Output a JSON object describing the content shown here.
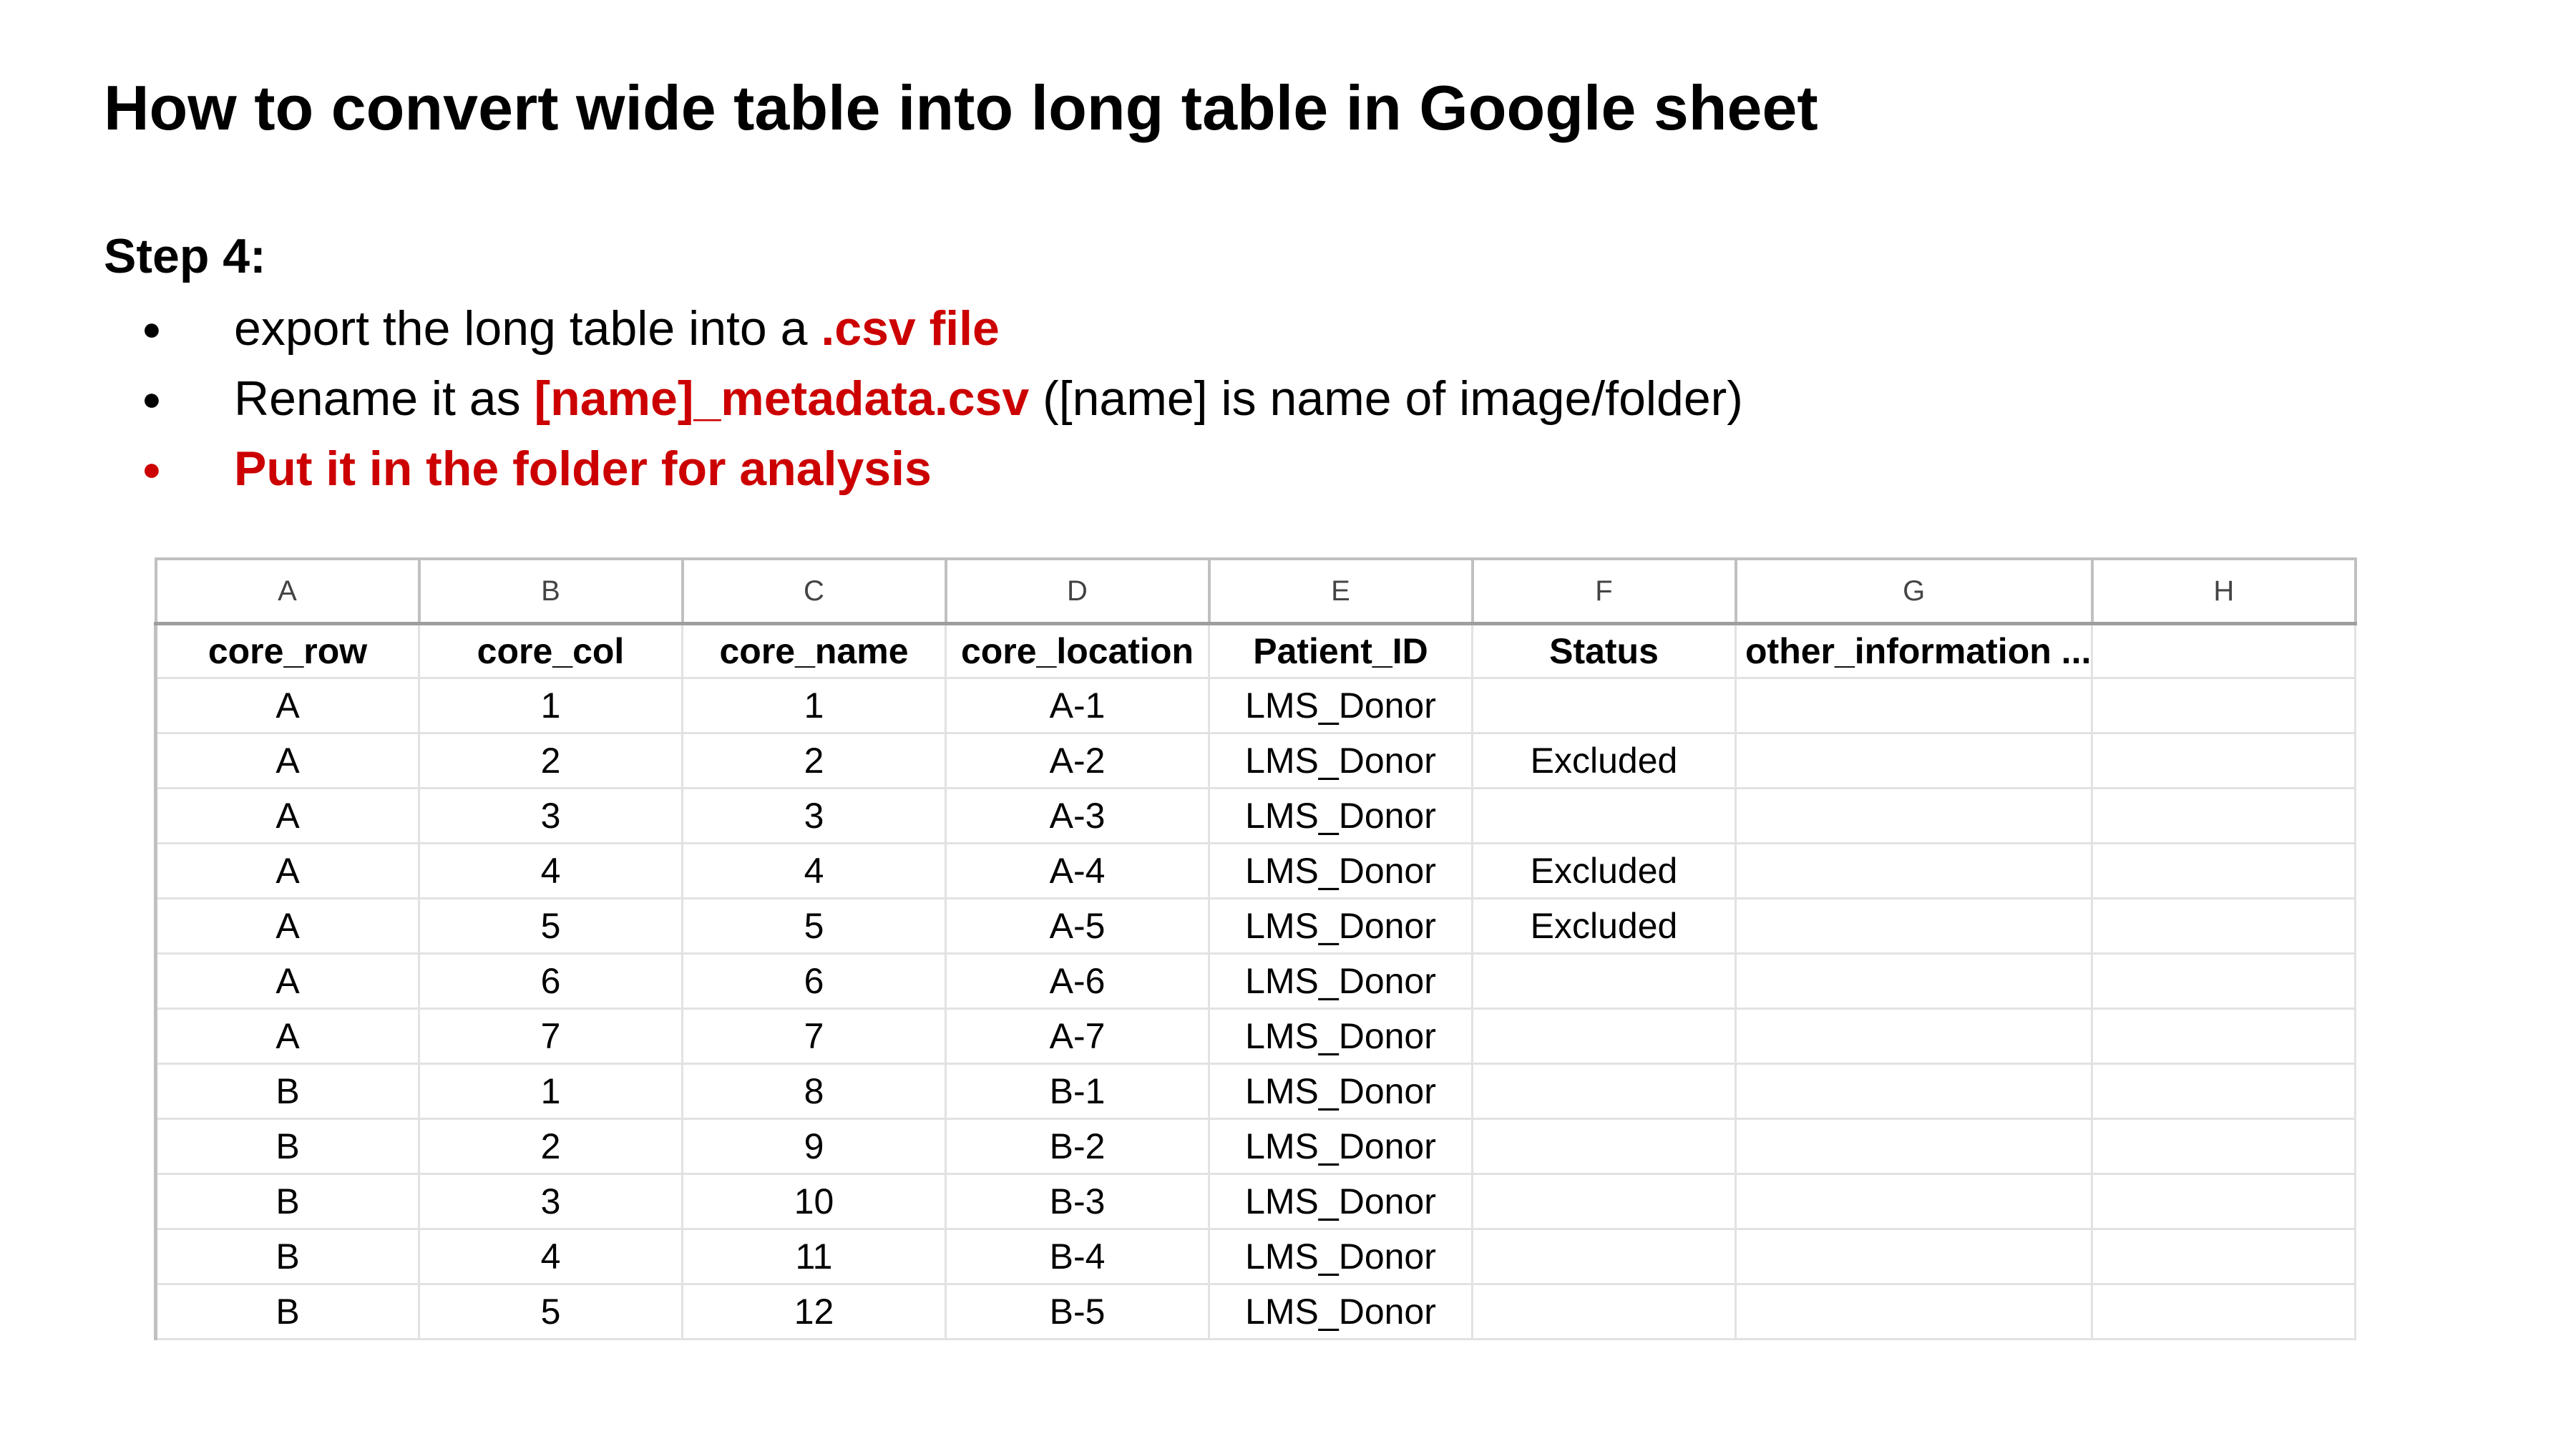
{
  "title": "How to convert wide table into long table in Google sheet",
  "step": "Step 4:",
  "bullets": [
    {
      "pre": "export the long table into a ",
      "highlight": ".csv file",
      "post": ""
    },
    {
      "pre": "Rename it as ",
      "highlight": "[name]_metadata.csv",
      "post": " ([name] is name of image/folder)"
    },
    {
      "text": "Put it in the folder for analysis"
    }
  ],
  "bullet_glyph": "●",
  "colors": {
    "accent": "#cc0000",
    "grid": "#e2e2e2",
    "header_border": "#c0c0c0"
  },
  "sheet": {
    "column_letters": [
      "A",
      "B",
      "C",
      "D",
      "E",
      "F",
      "G",
      "H"
    ],
    "headers": [
      "core_row",
      "core_col",
      "core_name",
      "core_location",
      "Patient_ID",
      "Status",
      "other_information ...",
      ""
    ],
    "rows": [
      [
        "A",
        "1",
        "1",
        "A-1",
        "LMS_Donor",
        "",
        "",
        ""
      ],
      [
        "A",
        "2",
        "2",
        "A-2",
        "LMS_Donor",
        "Excluded",
        "",
        ""
      ],
      [
        "A",
        "3",
        "3",
        "A-3",
        "LMS_Donor",
        "",
        "",
        ""
      ],
      [
        "A",
        "4",
        "4",
        "A-4",
        "LMS_Donor",
        "Excluded",
        "",
        ""
      ],
      [
        "A",
        "5",
        "5",
        "A-5",
        "LMS_Donor",
        "Excluded",
        "",
        ""
      ],
      [
        "A",
        "6",
        "6",
        "A-6",
        "LMS_Donor",
        "",
        "",
        ""
      ],
      [
        "A",
        "7",
        "7",
        "A-7",
        "LMS_Donor",
        "",
        "",
        ""
      ],
      [
        "B",
        "1",
        "8",
        "B-1",
        "LMS_Donor",
        "",
        "",
        ""
      ],
      [
        "B",
        "2",
        "9",
        "B-2",
        "LMS_Donor",
        "",
        "",
        ""
      ],
      [
        "B",
        "3",
        "10",
        "B-3",
        "LMS_Donor",
        "",
        "",
        ""
      ],
      [
        "B",
        "4",
        "11",
        "B-4",
        "LMS_Donor",
        "",
        "",
        ""
      ],
      [
        "B",
        "5",
        "12",
        "B-5",
        "LMS_Donor",
        "",
        "",
        ""
      ]
    ]
  }
}
